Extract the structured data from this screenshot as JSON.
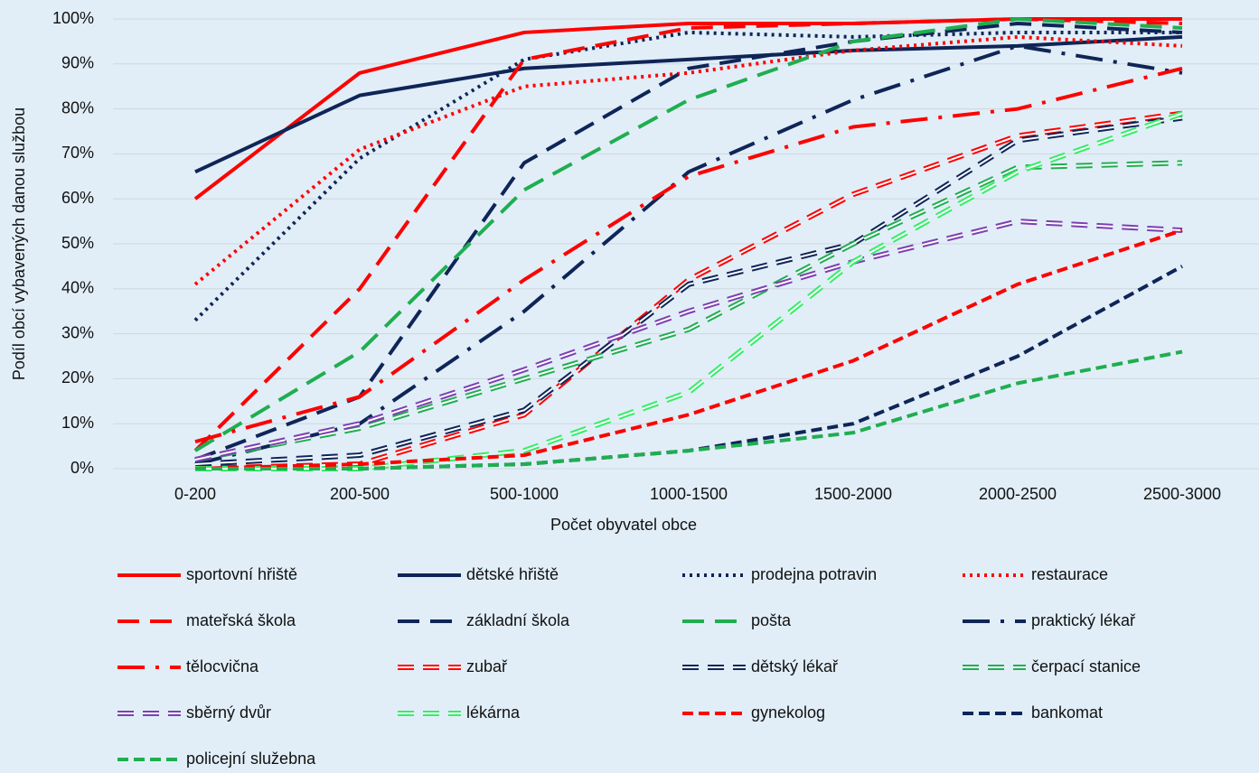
{
  "chart_data": {
    "type": "line",
    "x_label": "Počet obyvatel obce",
    "y_label": "Podíl obcí vybavených danou službou",
    "categories": [
      "0-200",
      "200-500",
      "500-1000",
      "1000-1500",
      "1500-2000",
      "2000-2500",
      "2500-3000"
    ],
    "ylim": [
      0,
      100
    ],
    "yticks": [
      {
        "value": 0,
        "label": "0%"
      },
      {
        "value": 10,
        "label": "10%"
      },
      {
        "value": 20,
        "label": "20%"
      },
      {
        "value": 30,
        "label": "30%"
      },
      {
        "value": 40,
        "label": "40%"
      },
      {
        "value": 50,
        "label": "50%"
      },
      {
        "value": 60,
        "label": "60%"
      },
      {
        "value": 70,
        "label": "70%"
      },
      {
        "value": 80,
        "label": "80%"
      },
      {
        "value": 90,
        "label": "90%"
      },
      {
        "value": 100,
        "label": "100%"
      }
    ],
    "grid": true,
    "series": [
      {
        "name": "sportovní hřiště",
        "color": "#ff0000",
        "style": "solid",
        "values": [
          60,
          88,
          97,
          99,
          99,
          100,
          100
        ]
      },
      {
        "name": "dětské hřiště",
        "color": "#0f2557",
        "style": "solid",
        "values": [
          66,
          83,
          89,
          91,
          93,
          94,
          96
        ]
      },
      {
        "name": "prodejna potravin",
        "color": "#0f2557",
        "style": "dotted",
        "values": [
          33,
          69,
          91,
          97,
          96,
          97,
          97
        ]
      },
      {
        "name": "restaurace",
        "color": "#ff0000",
        "style": "dotted",
        "values": [
          41,
          71,
          85,
          88,
          93,
          96,
          94
        ]
      },
      {
        "name": "mateřská škola",
        "color": "#ff0000",
        "style": "dashed",
        "values": [
          4,
          40,
          91,
          98,
          99,
          100,
          99
        ]
      },
      {
        "name": "základní škola",
        "color": "#0f2557",
        "style": "dashed",
        "values": [
          2,
          16,
          68,
          89,
          95,
          99,
          97
        ]
      },
      {
        "name": "pošta",
        "color": "#1fae50",
        "style": "dashed",
        "values": [
          4,
          26,
          62,
          82,
          95,
          100,
          98
        ]
      },
      {
        "name": "praktický lékař",
        "color": "#0f2557",
        "style": "dashdot",
        "values": [
          1,
          10,
          35,
          66,
          82,
          94,
          88
        ]
      },
      {
        "name": "tělocvična",
        "color": "#ff0000",
        "style": "dashdot",
        "values": [
          6,
          16,
          42,
          65,
          76,
          80,
          89
        ]
      },
      {
        "name": "zubař",
        "color": "#ff0000",
        "style": "double",
        "values": [
          0,
          1,
          12,
          42,
          61,
          74,
          79
        ]
      },
      {
        "name": "dětský lékař",
        "color": "#0f2557",
        "style": "double",
        "values": [
          1,
          3,
          13,
          41,
          50,
          73,
          78
        ]
      },
      {
        "name": "čerpací stanice",
        "color": "#1fae50",
        "style": "double",
        "values": [
          2,
          9,
          20,
          31,
          50,
          67,
          68
        ]
      },
      {
        "name": "sběrný dvůr",
        "color": "#7d3fb0",
        "style": "double",
        "values": [
          2,
          10,
          22,
          35,
          46,
          55,
          53
        ]
      },
      {
        "name": "lékárna",
        "color": "#33ee66",
        "style": "double",
        "values": [
          0,
          0,
          4,
          17,
          46,
          66,
          79
        ]
      },
      {
        "name": "gynekolog",
        "color": "#ff0000",
        "style": "shortdash",
        "values": [
          0,
          1,
          3,
          12,
          24,
          41,
          53
        ]
      },
      {
        "name": "bankomat",
        "color": "#0f2557",
        "style": "shortdash",
        "values": [
          0,
          0,
          1,
          4,
          10,
          25,
          45
        ]
      },
      {
        "name": "policejní služebna",
        "color": "#1fae50",
        "style": "shortdash",
        "values": [
          0,
          0,
          1,
          4,
          8,
          19,
          26
        ]
      }
    ]
  }
}
